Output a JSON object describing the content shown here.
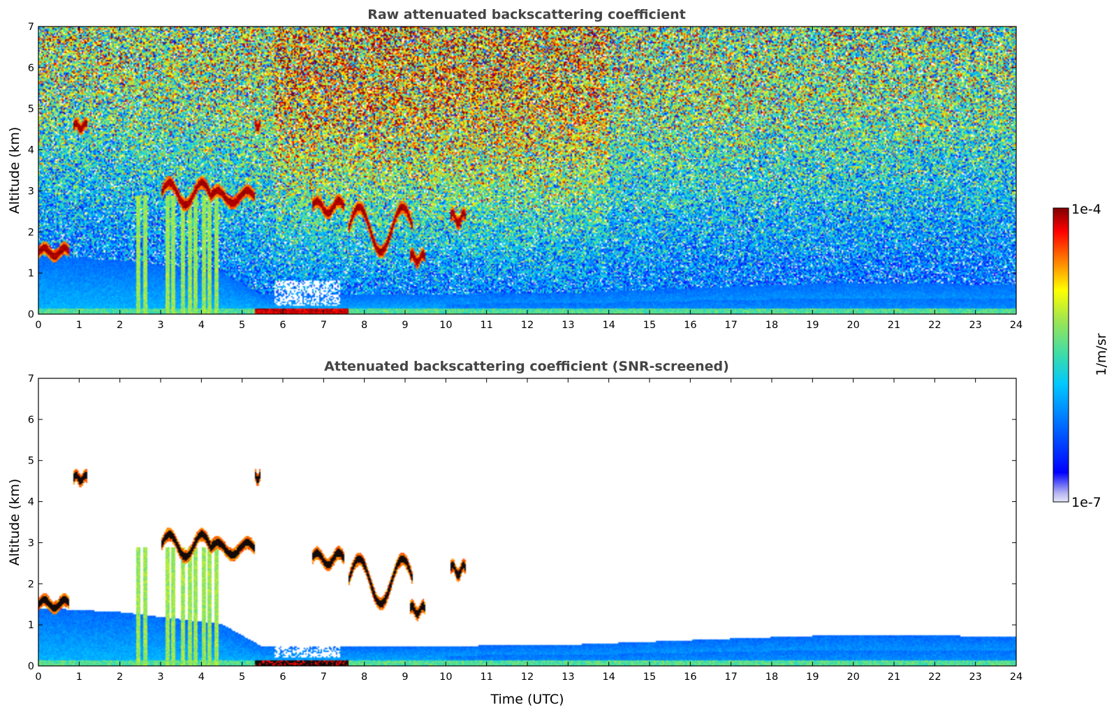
{
  "chart_data": [
    {
      "type": "heatmap",
      "title": "Raw attenuated backscattering coefficient",
      "xlabel": "",
      "ylabel": "Altitude (km)",
      "xlim": [
        0,
        24
      ],
      "ylim": [
        0,
        7
      ],
      "xticks": [
        "0",
        "1",
        "2",
        "3",
        "4",
        "5",
        "6",
        "7",
        "8",
        "9",
        "10",
        "11",
        "12",
        "13",
        "14",
        "15",
        "16",
        "17",
        "18",
        "19",
        "20",
        "21",
        "22",
        "23",
        "24"
      ],
      "yticks": [
        "0",
        "1",
        "2",
        "3",
        "4",
        "5",
        "6",
        "7"
      ],
      "screened": false,
      "features": {
        "boundary_layer_top_km": [
          [
            0,
            1.4
          ],
          [
            2,
            1.3
          ],
          [
            4.5,
            1.0
          ],
          [
            5.5,
            0.45
          ],
          [
            8,
            0.45
          ],
          [
            13,
            0.5
          ],
          [
            17,
            0.65
          ],
          [
            20,
            0.75
          ],
          [
            24,
            0.7
          ]
        ],
        "cloud_layers": [
          {
            "t": [
              0.0,
              0.75
            ],
            "z": [
              1.4,
              1.6
            ]
          },
          {
            "t": [
              0.85,
              1.2
            ],
            "z": [
              4.5,
              4.65
            ]
          },
          {
            "t": [
              3.0,
              4.2
            ],
            "z": [
              2.65,
              3.2
            ]
          },
          {
            "t": [
              4.2,
              5.3
            ],
            "z": [
              2.7,
              3.0
            ]
          },
          {
            "t": [
              5.3,
              5.45
            ],
            "z": [
              4.5,
              4.65
            ]
          },
          {
            "t": [
              6.7,
              7.5
            ],
            "z": [
              2.45,
              2.75
            ]
          },
          {
            "t": [
              7.6,
              9.2
            ],
            "z": [
              1.5,
              2.6
            ]
          },
          {
            "t": [
              9.1,
              9.5
            ],
            "z": [
              1.25,
              1.45
            ]
          },
          {
            "t": [
              10.1,
              10.5
            ],
            "z": [
              2.2,
              2.45
            ]
          }
        ],
        "fall_streaks_t": [
          2.45,
          2.6,
          3.15,
          3.3,
          3.55,
          3.7,
          3.85,
          4.05,
          4.2,
          4.35
        ],
        "surface_layer": {
          "t": [
            5.3,
            7.6
          ],
          "z": [
            0.0,
            0.12
          ]
        }
      }
    },
    {
      "type": "heatmap",
      "title": "Attenuated backscattering coefficient (SNR-screened)",
      "xlabel": "Time (UTC)",
      "ylabel": "Altitude (km)",
      "xlim": [
        0,
        24
      ],
      "ylim": [
        0,
        7
      ],
      "xticks": [
        "0",
        "1",
        "2",
        "3",
        "4",
        "5",
        "6",
        "7",
        "8",
        "9",
        "10",
        "11",
        "12",
        "13",
        "14",
        "15",
        "16",
        "17",
        "18",
        "19",
        "20",
        "21",
        "22",
        "23",
        "24"
      ],
      "yticks": [
        "0",
        "1",
        "2",
        "3",
        "4",
        "5",
        "6",
        "7"
      ],
      "screened": true
    }
  ],
  "colorbar": {
    "label": "1/m/sr",
    "max_label": "1e-4",
    "min_label": "1e-7",
    "scale": "log",
    "range": [
      1e-07,
      0.0001
    ],
    "colormap": [
      "#e6e6fa",
      "#0000ff",
      "#00c8ff",
      "#3cdcaa",
      "#ffff00",
      "#ff8000",
      "#ff0000",
      "#800000"
    ]
  }
}
